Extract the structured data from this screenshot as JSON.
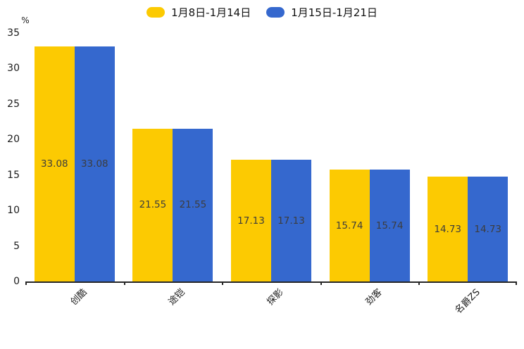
{
  "chart_data": {
    "type": "bar",
    "title": "",
    "xlabel": "",
    "ylabel": "%",
    "ylim": [
      0,
      35
    ],
    "yticks": [
      0,
      5,
      10,
      15,
      20,
      25,
      30,
      35
    ],
    "grid": false,
    "legend_position": "top-center",
    "categories": [
      "创酷",
      "途铠",
      "探影",
      "劲客",
      "名爵ZS"
    ],
    "series": [
      {
        "name": "1月8日-1月14日",
        "color": "#FCCA02",
        "values": [
          33.08,
          21.55,
          17.13,
          15.74,
          14.73
        ]
      },
      {
        "name": "1月15日-1月21日",
        "color": "#3568CE",
        "values": [
          33.08,
          21.55,
          17.13,
          15.74,
          14.73
        ]
      }
    ],
    "value_labels_shown": true,
    "value_label_color": "#3d3d3d",
    "axis_color": "#262626"
  }
}
